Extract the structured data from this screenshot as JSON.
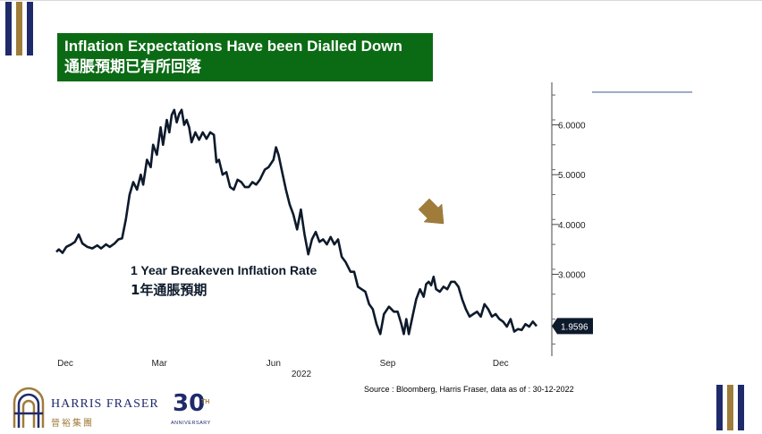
{
  "title_en": "Inflation Expectations Have been Dialled Down",
  "title_zh": "通脹預期已有所回落",
  "series_label_en": "1 Year Breakeven Inflation Rate",
  "series_label_zh": "1年通脹預期",
  "source": "Source : Bloomberg, Harris Fraser, data as of : 30-12-2022",
  "logo": {
    "name": "HARRIS FRASER",
    "name_zh": "晉裕集團",
    "anniversary_number": "30",
    "anniversary_sup": "TH",
    "anniversary_word": "ANNIVERSARY"
  },
  "colors": {
    "green": "#0b6b14",
    "navy": "#1f2a6b",
    "gold": "#a07c3b",
    "line": "#0d1a2b"
  },
  "chart_data": {
    "type": "line",
    "title": "",
    "xlabel": "2022",
    "ylabel": "",
    "x_axis_position": "bottom",
    "y_axis_position": "right",
    "xlim": [
      "2021-12-08",
      "2022-12-30"
    ],
    "ylim": [
      1.5,
      6.8
    ],
    "x_ticks": [
      {
        "label": "Dec",
        "date": "2021-12-01"
      },
      {
        "label": "Mar",
        "date": "2022-03-01"
      },
      {
        "label": "Jun",
        "date": "2022-06-01"
      },
      {
        "label": "Sep",
        "date": "2022-09-01"
      },
      {
        "label": "Dec",
        "date": "2022-12-01"
      }
    ],
    "x_year_label": "2022",
    "y_ticks": [
      {
        "label": "6.0000",
        "value": 6.0
      },
      {
        "label": "5.0000",
        "value": 5.0
      },
      {
        "label": "4.0000",
        "value": 4.0
      },
      {
        "label": "3.0000",
        "value": 3.0
      }
    ],
    "last_value_label": "1.9596",
    "grid": false,
    "annotation": "down-arrow",
    "series": [
      {
        "values": [
          [
            "2021-12-08",
            3.45
          ],
          [
            "2021-12-10",
            3.5
          ],
          [
            "2021-12-13",
            3.43
          ],
          [
            "2021-12-16",
            3.55
          ],
          [
            "2021-12-20",
            3.6
          ],
          [
            "2021-12-23",
            3.65
          ],
          [
            "2021-12-26",
            3.8
          ],
          [
            "2021-12-29",
            3.62
          ],
          [
            "2022-01-02",
            3.55
          ],
          [
            "2022-01-06",
            3.52
          ],
          [
            "2022-01-10",
            3.58
          ],
          [
            "2022-01-13",
            3.52
          ],
          [
            "2022-01-17",
            3.6
          ],
          [
            "2022-01-20",
            3.55
          ],
          [
            "2022-01-24",
            3.62
          ],
          [
            "2022-01-27",
            3.7
          ],
          [
            "2022-01-30",
            3.72
          ],
          [
            "2022-02-02",
            4.1
          ],
          [
            "2022-02-05",
            4.6
          ],
          [
            "2022-02-08",
            4.85
          ],
          [
            "2022-02-11",
            4.7
          ],
          [
            "2022-02-14",
            5.0
          ],
          [
            "2022-02-16",
            4.8
          ],
          [
            "2022-02-19",
            5.3
          ],
          [
            "2022-02-22",
            5.15
          ],
          [
            "2022-02-24",
            5.6
          ],
          [
            "2022-02-27",
            5.4
          ],
          [
            "2022-03-02",
            5.95
          ],
          [
            "2022-03-04",
            5.6
          ],
          [
            "2022-03-07",
            6.1
          ],
          [
            "2022-03-09",
            5.85
          ],
          [
            "2022-03-11",
            6.2
          ],
          [
            "2022-03-13",
            6.3
          ],
          [
            "2022-03-15",
            6.05
          ],
          [
            "2022-03-17",
            6.22
          ],
          [
            "2022-03-19",
            6.3
          ],
          [
            "2022-03-21",
            6.0
          ],
          [
            "2022-03-23",
            6.1
          ],
          [
            "2022-03-25",
            5.95
          ],
          [
            "2022-03-27",
            5.65
          ],
          [
            "2022-03-30",
            5.85
          ],
          [
            "2022-04-02",
            5.7
          ],
          [
            "2022-04-05",
            5.85
          ],
          [
            "2022-04-08",
            5.72
          ],
          [
            "2022-04-11",
            5.85
          ],
          [
            "2022-04-14",
            5.8
          ],
          [
            "2022-04-16",
            5.25
          ],
          [
            "2022-04-18",
            5.3
          ],
          [
            "2022-04-21",
            5.0
          ],
          [
            "2022-04-24",
            5.05
          ],
          [
            "2022-04-27",
            4.75
          ],
          [
            "2022-04-30",
            4.7
          ],
          [
            "2022-05-03",
            4.9
          ],
          [
            "2022-05-06",
            4.85
          ],
          [
            "2022-05-09",
            4.75
          ],
          [
            "2022-05-12",
            4.75
          ],
          [
            "2022-05-15",
            4.85
          ],
          [
            "2022-05-18",
            4.8
          ],
          [
            "2022-05-21",
            4.9
          ],
          [
            "2022-05-25",
            5.1
          ],
          [
            "2022-05-28",
            5.15
          ],
          [
            "2022-06-01",
            5.3
          ],
          [
            "2022-06-03",
            5.55
          ],
          [
            "2022-06-05",
            5.4
          ],
          [
            "2022-06-08",
            5.05
          ],
          [
            "2022-06-11",
            4.7
          ],
          [
            "2022-06-14",
            4.4
          ],
          [
            "2022-06-17",
            4.2
          ],
          [
            "2022-06-20",
            3.9
          ],
          [
            "2022-06-23",
            4.3
          ],
          [
            "2022-06-26",
            3.8
          ],
          [
            "2022-06-29",
            3.4
          ],
          [
            "2022-07-02",
            3.7
          ],
          [
            "2022-07-05",
            3.85
          ],
          [
            "2022-07-08",
            3.65
          ],
          [
            "2022-07-11",
            3.7
          ],
          [
            "2022-07-14",
            3.6
          ],
          [
            "2022-07-17",
            3.75
          ],
          [
            "2022-07-20",
            3.6
          ],
          [
            "2022-07-23",
            3.7
          ],
          [
            "2022-07-26",
            3.35
          ],
          [
            "2022-07-29",
            3.25
          ],
          [
            "2022-08-02",
            3.05
          ],
          [
            "2022-08-05",
            3.05
          ],
          [
            "2022-08-08",
            2.75
          ],
          [
            "2022-08-11",
            2.7
          ],
          [
            "2022-08-14",
            2.65
          ],
          [
            "2022-08-17",
            2.4
          ],
          [
            "2022-08-20",
            2.3
          ],
          [
            "2022-08-23",
            2.0
          ],
          [
            "2022-08-26",
            1.8
          ],
          [
            "2022-08-29",
            2.2
          ],
          [
            "2022-09-02",
            2.35
          ],
          [
            "2022-09-06",
            2.25
          ],
          [
            "2022-09-09",
            2.25
          ],
          [
            "2022-09-12",
            2.0
          ],
          [
            "2022-09-14",
            1.8
          ],
          [
            "2022-09-16",
            2.1
          ],
          [
            "2022-09-18",
            1.8
          ],
          [
            "2022-09-21",
            2.15
          ],
          [
            "2022-09-24",
            2.5
          ],
          [
            "2022-09-27",
            2.7
          ],
          [
            "2022-09-30",
            2.55
          ],
          [
            "2022-10-02",
            2.8
          ],
          [
            "2022-10-04",
            2.85
          ],
          [
            "2022-10-06",
            2.78
          ],
          [
            "2022-10-08",
            2.95
          ],
          [
            "2022-10-10",
            2.7
          ],
          [
            "2022-10-13",
            2.65
          ],
          [
            "2022-10-16",
            2.75
          ],
          [
            "2022-10-19",
            2.7
          ],
          [
            "2022-10-22",
            2.85
          ],
          [
            "2022-10-25",
            2.85
          ],
          [
            "2022-10-28",
            2.75
          ],
          [
            "2022-10-31",
            2.5
          ],
          [
            "2022-11-03",
            2.3
          ],
          [
            "2022-11-06",
            2.15
          ],
          [
            "2022-11-09",
            2.2
          ],
          [
            "2022-11-12",
            2.25
          ],
          [
            "2022-11-15",
            2.15
          ],
          [
            "2022-11-18",
            2.4
          ],
          [
            "2022-11-21",
            2.3
          ],
          [
            "2022-11-24",
            2.15
          ],
          [
            "2022-11-27",
            2.2
          ],
          [
            "2022-11-30",
            2.1
          ],
          [
            "2022-12-03",
            2.05
          ],
          [
            "2022-12-06",
            1.95
          ],
          [
            "2022-12-09",
            2.1
          ],
          [
            "2022-12-12",
            1.85
          ],
          [
            "2022-12-15",
            1.9
          ],
          [
            "2022-12-18",
            1.88
          ],
          [
            "2022-12-21",
            2.0
          ],
          [
            "2022-12-24",
            1.95
          ],
          [
            "2022-12-27",
            2.05
          ],
          [
            "2022-12-30",
            1.96
          ]
        ]
      }
    ]
  }
}
